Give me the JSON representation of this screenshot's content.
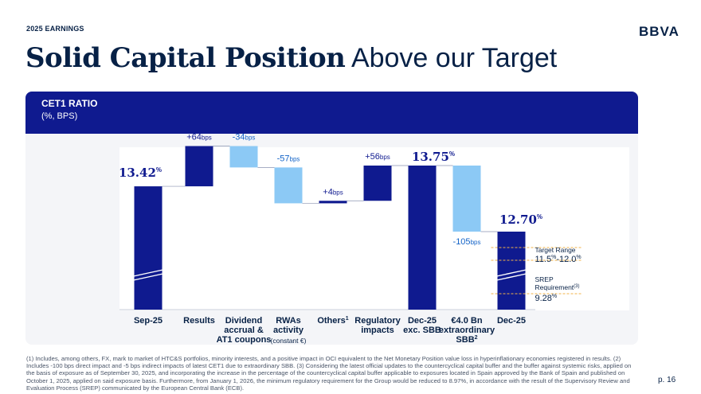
{
  "header": {
    "eyebrow": "2025 EARNINGS",
    "logo": "BBVA",
    "title_bold": "Solid Capital Position",
    "title_regular": "Above our Target"
  },
  "panel": {
    "title": "CET1 RATIO",
    "subtitle": "(%, BPS)"
  },
  "colors": {
    "navy": "#0f1a8f",
    "light_blue": "#8cc9f5",
    "panel_bg": "#f4f5f8",
    "threshold": "#f2b34a"
  },
  "chart_data": {
    "type": "bar",
    "subtype": "waterfall",
    "unit": "%",
    "categories": [
      [
        "Sep-25"
      ],
      [
        "Results"
      ],
      [
        "Dividend",
        "accrual &",
        "AT1 coupons"
      ],
      [
        "RWAs",
        "activity"
      ],
      [
        "Others"
      ],
      [
        "Regulatory",
        "impacts"
      ],
      [
        "Dec-25",
        "exc. SBB"
      ],
      [
        "€4.0 Bn",
        "extraordinary",
        "SBB"
      ],
      [
        "Dec-25"
      ]
    ],
    "category_notes": [
      "",
      "",
      "",
      "(constant €)",
      "",
      "",
      "",
      "",
      ""
    ],
    "category_sup": [
      "",
      "",
      "",
      "",
      "1",
      "",
      "",
      "2",
      ""
    ],
    "bars": [
      {
        "kind": "total",
        "value": 13.42,
        "label_num": "13.42",
        "label_unit": "%"
      },
      {
        "kind": "delta",
        "value": 0.64,
        "label_num": "+64",
        "label_unit": "bps"
      },
      {
        "kind": "delta",
        "value": -0.34,
        "label_num": "-34",
        "label_unit": "bps"
      },
      {
        "kind": "delta",
        "value": -0.57,
        "label_num": "-57",
        "label_unit": "bps"
      },
      {
        "kind": "delta",
        "value": 0.04,
        "label_num": "+4",
        "label_unit": "bps"
      },
      {
        "kind": "delta",
        "value": 0.56,
        "label_num": "+56",
        "label_unit": "bps"
      },
      {
        "kind": "total",
        "value": 13.75,
        "label_num": "13.75",
        "label_unit": "%"
      },
      {
        "kind": "delta",
        "value": -1.05,
        "label_num": "-105",
        "label_unit": "bps"
      },
      {
        "kind": "total",
        "value": 12.7,
        "label_num": "12.70",
        "label_unit": "%"
      }
    ],
    "annotations": [
      {
        "name": "Target Range",
        "lines": [
          "Target Range"
        ],
        "value_text": "11.5",
        "value_unit": "%",
        "value_sep": "-",
        "value_text2": "12.0",
        "value_unit2": "%",
        "y_values": [
          11.5,
          12.0
        ]
      },
      {
        "name": "SREP Requirement",
        "lines": [
          "SREP",
          "Requirement"
        ],
        "sup": "(3)",
        "value_text": "9.28",
        "value_unit": "%",
        "y_values": [
          9.28
        ]
      }
    ],
    "axis_break": true
  },
  "footnote": "(1) Includes, among others, FX, mark to market of HTC&S portfolios, minority interests, and a positive impact in OCI equivalent to the Net Monetary Position value loss in hyperinflationary economies registered in results. (2) Includes -100 bps direct impact and -5 bps indirect impacts of latest CET1 due to extraordinary SBB. (3) Considering the latest official updates to the countercyclical capital buffer and the buffer against systemic risks, applied on the basis of exposure as of September 30, 2025, and incorporating the increase in the percentage of the countercyclical capital buffer applicable to exposures located in Spain approved by the Bank of Spain and published on October 1, 2025, applied on said exposure basis. Furthermore, from January 1, 2026, the minimum regulatory requirement for the Group would be reduced to 8.97%, in accordance with the result of the Supervisory Review and Evaluation Process (SREP) communicated by the European Central Bank (ECB).",
  "page_number": "p. 16"
}
